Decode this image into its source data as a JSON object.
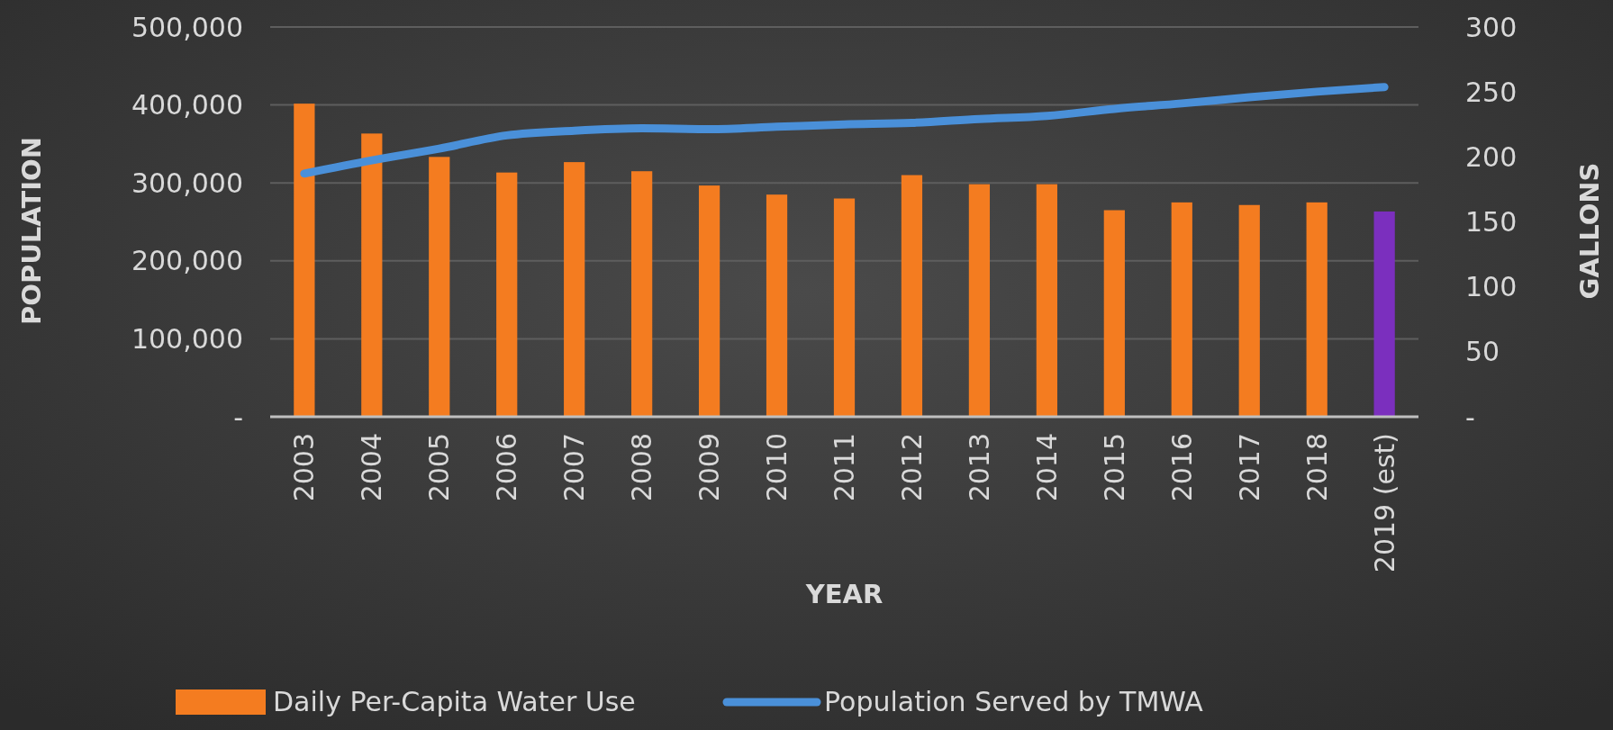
{
  "chart_data": {
    "type": "bar",
    "xlabel": "YEAR",
    "ylabel": "POPULATION",
    "y2label": "GALLONS",
    "categories": [
      "2003",
      "2004",
      "2005",
      "2006",
      "2007",
      "2008",
      "2009",
      "2010",
      "2011",
      "2012",
      "2013",
      "2014",
      "2015",
      "2016",
      "2017",
      "2018",
      "2019 (est)"
    ],
    "series": [
      {
        "name": "Daily Per-Capita Water Use",
        "axis": "y2",
        "color": "#f47c20",
        "colors": [
          "#f47c20",
          "#f47c20",
          "#f47c20",
          "#f47c20",
          "#f47c20",
          "#f47c20",
          "#f47c20",
          "#f47c20",
          "#f47c20",
          "#f47c20",
          "#f47c20",
          "#f47c20",
          "#f47c20",
          "#f47c20",
          "#f47c20",
          "#f47c20",
          "#7b2fbe"
        ],
        "values": [
          241,
          218,
          200,
          188,
          196,
          189,
          178,
          171,
          168,
          186,
          179,
          179,
          159,
          165,
          163,
          165,
          158
        ]
      },
      {
        "name": "Population Served by TMWA",
        "type": "line",
        "axis": "y",
        "color": "#4a90d9",
        "values": [
          312000,
          329000,
          344000,
          361000,
          367000,
          370000,
          369000,
          372000,
          375000,
          377000,
          382000,
          386000,
          395000,
          402000,
          410000,
          417000,
          423000
        ]
      }
    ],
    "ylim": [
      0,
      500000
    ],
    "yticks": [
      {
        "value": 0,
        "label": "-"
      },
      {
        "value": 100000,
        "label": "100,000"
      },
      {
        "value": 200000,
        "label": "200,000"
      },
      {
        "value": 300000,
        "label": "300,000"
      },
      {
        "value": 400000,
        "label": "400,000"
      },
      {
        "value": 500000,
        "label": "500,000"
      }
    ],
    "y2lim": [
      0,
      300
    ],
    "y2ticks": [
      {
        "value": 0,
        "label": "-"
      },
      50,
      100,
      150,
      200,
      250,
      300
    ],
    "grid": true,
    "legend": "bottom"
  }
}
